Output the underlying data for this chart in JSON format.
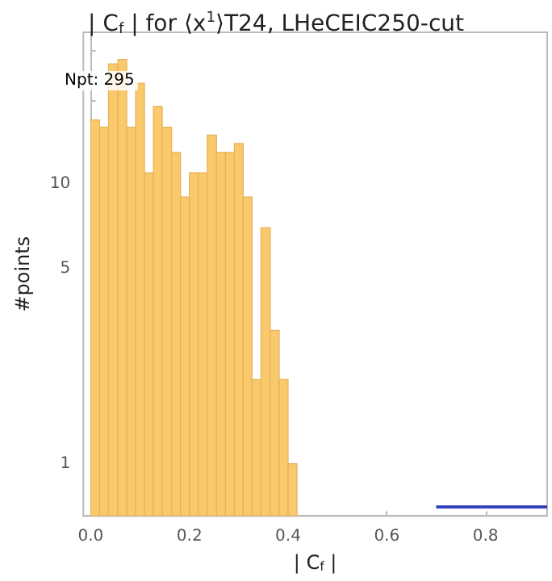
{
  "chart_data": {
    "type": "histogram",
    "title": "| C$_{f}$ | for ⟨x$^{1}$⟩T24, LHeCEIC250-cut",
    "xlabel": "| C$_{f}$ |",
    "ylabel": "#points",
    "bins": [
      0,
      0.018,
      0.036,
      0.055,
      0.073,
      0.091,
      0.109,
      0.127,
      0.145,
      0.164,
      0.182,
      0.2,
      0.218,
      0.236,
      0.255,
      0.273,
      0.291,
      0.309,
      0.327,
      0.345,
      0.364,
      0.382,
      0.4,
      0.418
    ],
    "values": [
      17,
      16,
      27,
      28,
      16,
      23,
      11,
      19,
      16,
      13,
      9,
      11,
      11,
      15,
      13,
      13,
      14,
      9,
      2,
      7,
      3,
      2,
      1
    ],
    "color": "#f9c96b",
    "series": [
      {
        "type": "line",
        "color": "#3344bb",
        "x": [
          0.7,
          0.925
        ],
        "values": [
          0.7,
          0.7
        ]
      }
    ],
    "log": "y",
    "xlim": [
      -0.015,
      0.925
    ],
    "ylim": [
      0.65,
      35
    ],
    "xticks": [
      {
        "value": 0,
        "label": "0.0"
      },
      0.2,
      0.4,
      0.6,
      0.8
    ],
    "yticks": [
      1,
      {
        "value": 2,
        "label": null
      },
      {
        "value": 3,
        "label": null
      },
      {
        "value": 4,
        "label": null
      },
      5,
      {
        "value": 6,
        "label": null
      },
      {
        "value": 7,
        "label": null
      },
      {
        "value": 8,
        "label": null
      },
      {
        "value": 9,
        "label": null
      },
      10,
      {
        "value": 20,
        "label": null
      },
      {
        "value": 30,
        "label": null
      }
    ],
    "annotations": [
      "Npt: 295"
    ],
    "legend": false
  }
}
